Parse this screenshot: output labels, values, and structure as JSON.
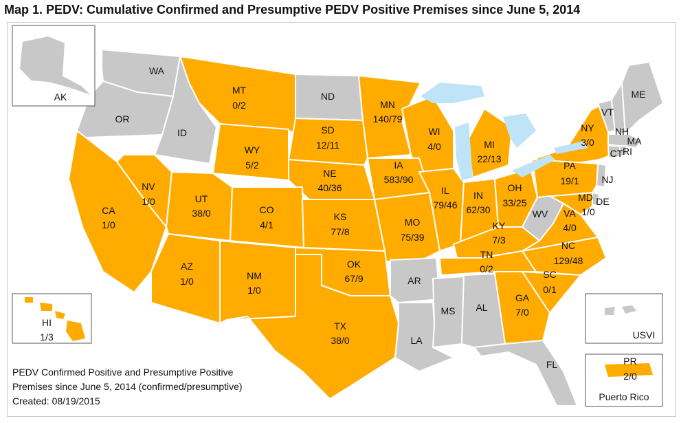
{
  "title": "Map 1.  PEDV:  Cumulative Confirmed and Presumptive PEDV Positive Premises since June 5, 2014",
  "colors": {
    "positive": "#ffab00",
    "none": "#c8c8c8",
    "lakes": "#bfe4f7",
    "border": "#ffffff"
  },
  "states": {
    "WA": {
      "name": "WA",
      "value": ""
    },
    "OR": {
      "name": "OR",
      "value": ""
    },
    "ID": {
      "name": "ID",
      "value": ""
    },
    "MT": {
      "name": "MT",
      "value": "0/2"
    },
    "ND": {
      "name": "ND",
      "value": ""
    },
    "MN": {
      "name": "MN",
      "value": "140/79"
    },
    "WI": {
      "name": "WI",
      "value": "4/0"
    },
    "MI": {
      "name": "MI",
      "value": "22/13"
    },
    "NY": {
      "name": "NY",
      "value": "3/0"
    },
    "VT": {
      "name": "VT",
      "value": ""
    },
    "NH": {
      "name": "NH",
      "value": ""
    },
    "ME": {
      "name": "ME",
      "value": ""
    },
    "MA": {
      "name": "MA",
      "value": ""
    },
    "CT": {
      "name": "CT",
      "value": ""
    },
    "RI": {
      "name": "RI",
      "value": ""
    },
    "NJ": {
      "name": "NJ",
      "value": ""
    },
    "DE": {
      "name": "DE",
      "value": ""
    },
    "MD": {
      "name": "MD",
      "value": "1/0"
    },
    "PA": {
      "name": "PA",
      "value": "19/1"
    },
    "WY": {
      "name": "WY",
      "value": "5/2"
    },
    "SD": {
      "name": "SD",
      "value": "12/11"
    },
    "NE": {
      "name": "NE",
      "value": "40/36"
    },
    "IA": {
      "name": "IA",
      "value": "583/90"
    },
    "IL": {
      "name": "IL",
      "value": "79/46"
    },
    "IN": {
      "name": "IN",
      "value": "62/30"
    },
    "OH": {
      "name": "OH",
      "value": "33/25"
    },
    "WV": {
      "name": "WV",
      "value": ""
    },
    "VA": {
      "name": "VA",
      "value": "4/0"
    },
    "NV": {
      "name": "NV",
      "value": "1/0"
    },
    "UT": {
      "name": "UT",
      "value": "38/0"
    },
    "CO": {
      "name": "CO",
      "value": "4/1"
    },
    "KS": {
      "name": "KS",
      "value": "77/8"
    },
    "MO": {
      "name": "MO",
      "value": "75/39"
    },
    "KY": {
      "name": "KY",
      "value": "7/3"
    },
    "CA": {
      "name": "CA",
      "value": "1/0"
    },
    "AZ": {
      "name": "AZ",
      "value": "1/0"
    },
    "NM": {
      "name": "NM",
      "value": "1/0"
    },
    "OK": {
      "name": "OK",
      "value": "67/9"
    },
    "AR": {
      "name": "AR",
      "value": ""
    },
    "TN": {
      "name": "TN",
      "value": "0/2"
    },
    "NC": {
      "name": "NC",
      "value": "129/48"
    },
    "SC": {
      "name": "SC",
      "value": "0/1"
    },
    "GA": {
      "name": "GA",
      "value": "7/0"
    },
    "MS": {
      "name": "MS",
      "value": ""
    },
    "AL": {
      "name": "AL",
      "value": ""
    },
    "TX": {
      "name": "TX",
      "value": "38/0"
    },
    "LA": {
      "name": "LA",
      "value": ""
    },
    "FL": {
      "name": "FL",
      "value": ""
    },
    "AK": {
      "name": "AK",
      "value": ""
    },
    "HI": {
      "name": "HI",
      "value": "1/3"
    },
    "USVI": {
      "name": "USVI",
      "value": ""
    },
    "PR": {
      "name": "PR",
      "value": "2/0"
    }
  },
  "insets": {
    "pr_caption": "Puerto Rico"
  },
  "legend": {
    "line1": "PEDV Confirmed Positive and Presumptive Positive",
    "line2": "Premises since June 5, 2014 (confirmed/presumptive)",
    "line3": "Created: 08/19/2015"
  }
}
